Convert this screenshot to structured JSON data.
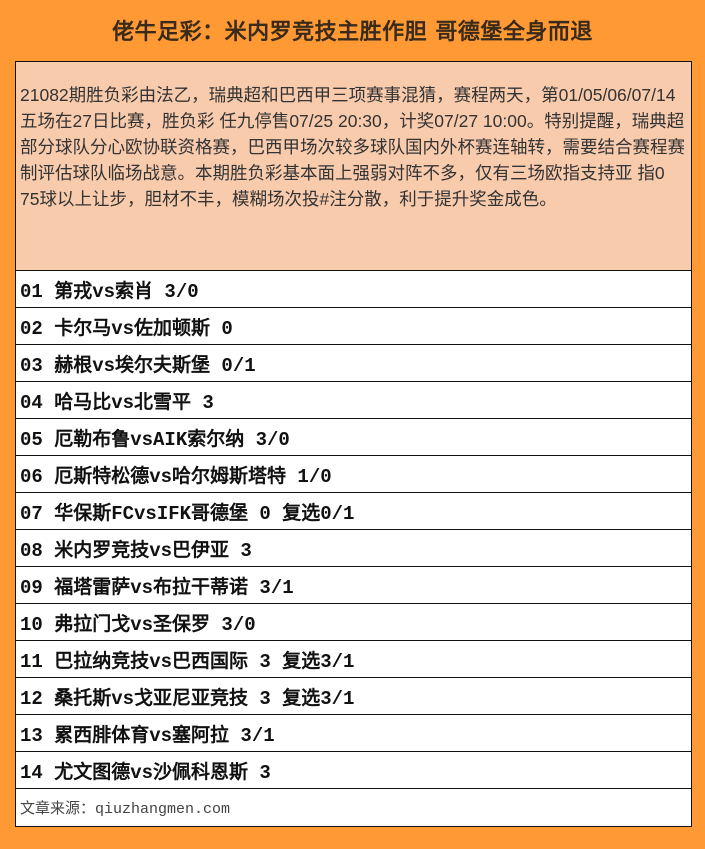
{
  "title": "佬牛足彩：米内罗竞技主胜作胆 哥德堡全身而退",
  "summary": "21082期胜负彩由法乙，瑞典超和巴西甲三项赛事混猜，赛程两天，第01/05/06/07/14五场在27日比赛，胜负彩 任九停售07/25 20:30，计奖07/27 10:00。特别提醒，瑞典超部分球队分心欧协联资格赛，巴西甲场次较多球队国内外杯赛连轴转，需要结合赛程赛制评估球队临场战意。本期胜负彩基本面上强弱对阵不多，仅有三场欧指支持亚 指0 75球以上让步，胆材不丰，模糊场次投#注分散，利于提升奖金成色。",
  "matches": [
    "01 第戎vs索肖 3/0",
    "02 卡尔马vs佐加顿斯 0",
    "03 赫根vs埃尔夫斯堡 0/1",
    "04 哈马比vs北雪平 3",
    "05 厄勒布鲁vsAIK索尔纳 3/0",
    "06 厄斯特松德vs哈尔姆斯塔特 1/0",
    "07 华保斯FCvsIFK哥德堡 0 复选0/1",
    "08 米内罗竞技vs巴伊亚 3",
    "09 福塔雷萨vs布拉干蒂诺 3/1",
    "10 弗拉门戈vs圣保罗 3/0",
    "11 巴拉纳竞技vs巴西国际 3 复选3/1",
    "12 桑托斯vs戈亚尼亚竞技 3 复选3/1",
    "13 累西腓体育vs塞阿拉 3/1",
    "14 尤文图德vs沙佩科恩斯 3"
  ],
  "footer": "文章来源：qiuzhangmen.com",
  "colors": {
    "background": "#FF9933",
    "summary_bg": "#F8CBAD"
  }
}
